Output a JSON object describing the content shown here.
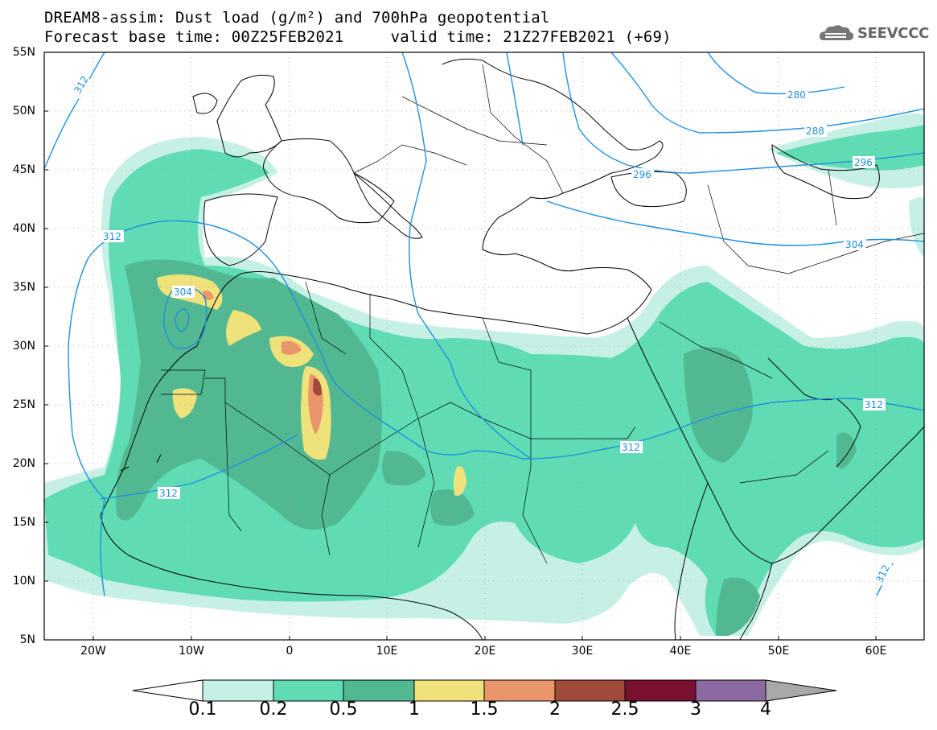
{
  "header": {
    "title_line1": "DREAM8-assim: Dust load (g/m²) and 700hPa geopotential",
    "title_line2": "Forecast base time: 00Z25FEB2021     valid time: 21Z27FEB2021 (+69)",
    "logo_text": "SEEVCCC"
  },
  "map": {
    "lat_labels": [
      "55N",
      "50N",
      "45N",
      "40N",
      "35N",
      "30N",
      "25N",
      "20N",
      "15N",
      "10N",
      "5N"
    ],
    "lon_labels": [
      "20W",
      "10W",
      "0",
      "10E",
      "20E",
      "30E",
      "40E",
      "50E",
      "60E"
    ],
    "contour_labels": [
      "312",
      "312",
      "304",
      "312",
      "312",
      "312",
      "304",
      "296",
      "288",
      "280",
      "296",
      "312"
    ]
  },
  "colorbar": {
    "levels": [
      "0.1",
      "0.2",
      "0.5",
      "1",
      "1.5",
      "2",
      "2.5",
      "3",
      "4"
    ],
    "colors": [
      "#c6f0e6",
      "#5fdcb3",
      "#52b891",
      "#f0e27a",
      "#e8966a",
      "#a04a3a",
      "#7a1030",
      "#8a6aa0"
    ]
  }
}
